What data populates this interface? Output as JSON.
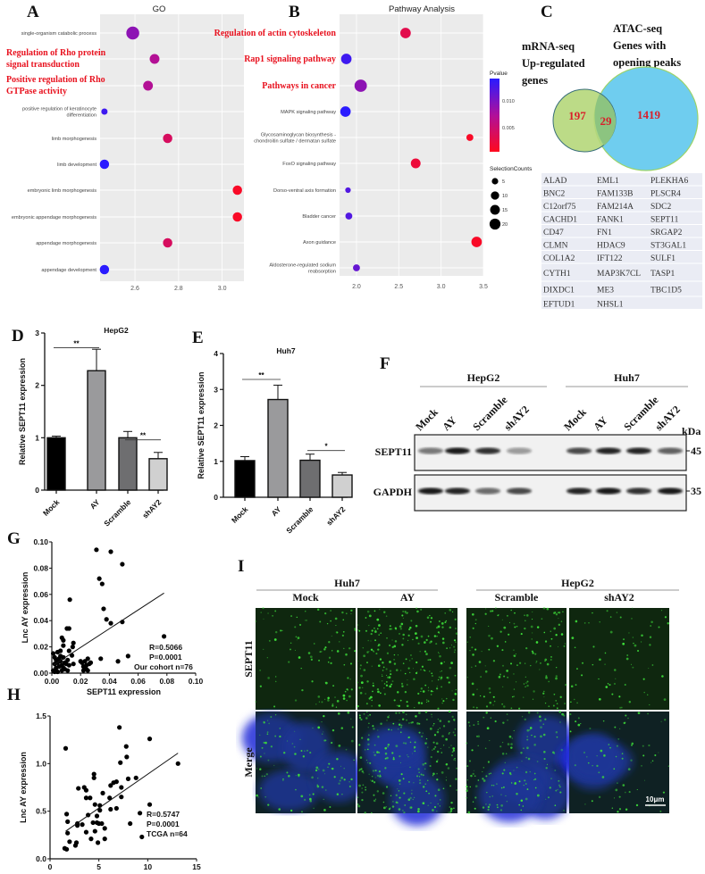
{
  "panels": {
    "A": "A",
    "B": "B",
    "C": "C",
    "D": "D",
    "E": "E",
    "F": "F",
    "G": "G",
    "H": "H",
    "I": "I"
  },
  "chart_data": [
    {
      "id": "go",
      "type": "scatter",
      "title": "GO",
      "xticks": [
        "2.6",
        "2.8",
        "3.0"
      ],
      "xlim": [
        2.44,
        3.1
      ],
      "categories": [
        {
          "label": "single-organism catabolic process",
          "x": 2.59,
          "count": 20,
          "pvalue": 0.009,
          "highlight": false
        },
        {
          "label": "Regulation of Rho protein signal transduction",
          "lines": [
            "Regulation of Rho protein",
            "signal transduction"
          ],
          "x": 2.69,
          "count": 10,
          "pvalue": 0.007,
          "highlight": true
        },
        {
          "label": "Positive regulation of Rho GTPase activity",
          "lines": [
            "Positive regulation of Rho",
            "GTPase activity"
          ],
          "x": 2.66,
          "count": 10,
          "pvalue": 0.007,
          "highlight": true
        },
        {
          "label": "positive regulation of keratinocyte differentiation",
          "lines": [
            "positive regulation of keratinocyte",
            "differentiation"
          ],
          "x": 2.46,
          "count": 3,
          "pvalue": 0.013,
          "highlight": false
        },
        {
          "label": "limb morphogenesis",
          "x": 2.75,
          "count": 9,
          "pvalue": 0.004,
          "highlight": false
        },
        {
          "label": "limb development",
          "x": 2.46,
          "count": 9,
          "pvalue": 0.014,
          "highlight": false
        },
        {
          "label": "embryonic limb morphogenesis",
          "x": 3.07,
          "count": 9,
          "pvalue": 0.001,
          "highlight": false
        },
        {
          "label": "embryonic appendage morphogenesis",
          "x": 3.07,
          "count": 9,
          "pvalue": 0.001,
          "highlight": false
        },
        {
          "label": "appendage morphogenesis",
          "x": 2.75,
          "count": 9,
          "pvalue": 0.004,
          "highlight": false
        },
        {
          "label": "appendage development",
          "x": 2.46,
          "count": 9,
          "pvalue": 0.014,
          "highlight": false
        }
      ]
    },
    {
      "id": "pathway",
      "type": "scatter",
      "title": "Pathway Analysis",
      "xticks": [
        "2.0",
        "2.5",
        "3.0",
        "3.5"
      ],
      "xlim": [
        1.8,
        3.5
      ],
      "categories": [
        {
          "label": "Regulation of actin cytoskeleton",
          "x": 2.58,
          "count": 12,
          "pvalue": 0.003,
          "highlight": true
        },
        {
          "label": "Rap1 signaling pathway",
          "x": 1.88,
          "count": 12,
          "pvalue": 0.013,
          "highlight": true
        },
        {
          "label": "Pathways in cancer",
          "x": 2.05,
          "count": 18,
          "pvalue": 0.009,
          "highlight": true
        },
        {
          "label": "MAPK signaling pathway",
          "x": 1.87,
          "count": 12,
          "pvalue": 0.014,
          "highlight": false
        },
        {
          "label": "Glycosaminoglycan biosynthesis - chondroitin sulfate / dermatan sulfate",
          "lines": [
            "Glycosaminoglycan biosynthesis -",
            "chondroitin sulfate / dermatan sulfate"
          ],
          "x": 3.34,
          "count": 4,
          "pvalue": 0.001,
          "highlight": false
        },
        {
          "label": "FoxO signaling pathway",
          "x": 2.7,
          "count": 10,
          "pvalue": 0.002,
          "highlight": false
        },
        {
          "label": "Dorso-ventral axis formation",
          "x": 1.9,
          "count": 2,
          "pvalue": 0.012,
          "highlight": false
        },
        {
          "label": "Bladder cancer",
          "x": 1.91,
          "count": 4,
          "pvalue": 0.012,
          "highlight": false
        },
        {
          "label": "Axon guidance",
          "x": 3.42,
          "count": 12,
          "pvalue": 0.001,
          "highlight": false
        },
        {
          "label": "Aldosterone-regulated sodium reabsorption",
          "lines": [
            "Aldosterone-regulated sodium",
            "reabsorption"
          ],
          "x": 2.0,
          "count": 4,
          "pvalue": 0.011,
          "highlight": false
        }
      ],
      "legend": {
        "color_title": "Pvalue",
        "color_ticks": [
          "0.010",
          "0.005"
        ],
        "color_range": [
          0.0005,
          0.014
        ],
        "colors": {
          "low": "#ff0a1e",
          "high": "#2a1bff"
        },
        "size_title": "SelectionCounts",
        "size_ticks": [
          5,
          10,
          15,
          20
        ],
        "placement": "right"
      }
    },
    {
      "id": "hepg2-bar",
      "type": "bar",
      "title": "HepG2",
      "ylabel": "Relative SEPT11 expression",
      "ylim": [
        0,
        3
      ],
      "yticks": [
        "0",
        "1",
        "2",
        "3"
      ],
      "categories": [
        "Mock",
        "AY",
        "Scramble",
        "shAY2"
      ],
      "values": [
        1.0,
        2.28,
        1.0,
        0.6
      ],
      "errors": [
        0.03,
        0.41,
        0.12,
        0.12
      ],
      "colors": [
        "#000000",
        "#9a9a9c",
        "#6e6e70",
        "#d0d0d0"
      ],
      "significance": [
        {
          "pair": [
            "Mock",
            "AY"
          ],
          "label": "**",
          "level": 2.72
        },
        {
          "pair": [
            "Scramble",
            "shAY2"
          ],
          "label": "**",
          "level": 0.96
        }
      ]
    },
    {
      "id": "huh7-bar",
      "type": "bar",
      "title": "Huh7",
      "ylabel": "Relative SEPT11 expression",
      "ylim": [
        0,
        4
      ],
      "yticks": [
        "0",
        "1",
        "2",
        "3",
        "4"
      ],
      "categories": [
        "Mock",
        "AY",
        "Scramble",
        "shAY2"
      ],
      "values": [
        1.02,
        2.72,
        1.03,
        0.62
      ],
      "errors": [
        0.11,
        0.4,
        0.17,
        0.07
      ],
      "colors": [
        "#000000",
        "#9a9a9c",
        "#6e6e70",
        "#d0d0d0"
      ],
      "significance": [
        {
          "pair": [
            "Mock",
            "AY"
          ],
          "label": "**",
          "level": 3.28
        },
        {
          "pair": [
            "Scramble",
            "shAY2"
          ],
          "label": "*",
          "level": 1.3
        }
      ]
    },
    {
      "id": "cohort-scatter",
      "type": "scatter",
      "xlabel": "SEPT11 expression",
      "ylabel": "Lnc AY expression",
      "xlim": [
        0,
        0.1
      ],
      "ylim": [
        0,
        0.1
      ],
      "xticks": [
        "0.00",
        "0.02",
        "0.04",
        "0.06",
        "0.08",
        "0.10"
      ],
      "yticks": [
        "0.00",
        "0.02",
        "0.04",
        "0.06",
        "0.08",
        "0.10"
      ],
      "annotation": [
        "R=0.5066",
        "P=0.0001",
        "Our cohort n=76"
      ],
      "fit": [
        [
          0.001,
          0.006
        ],
        [
          0.078,
          0.061
        ]
      ],
      "points": [
        [
          0.031,
          0.094
        ],
        [
          0.041,
          0.0925
        ],
        [
          0.049,
          0.083
        ],
        [
          0.033,
          0.072
        ],
        [
          0.035,
          0.068
        ],
        [
          0.0125,
          0.056
        ],
        [
          0.036,
          0.049
        ],
        [
          0.038,
          0.041
        ],
        [
          0.041,
          0.038
        ],
        [
          0.049,
          0.039
        ],
        [
          0.078,
          0.028
        ],
        [
          0.034,
          0.011
        ],
        [
          0.046,
          0.009
        ],
        [
          0.053,
          0.013
        ],
        [
          0.0105,
          0.034
        ],
        [
          0.012,
          0.034
        ],
        [
          0.007,
          0.027
        ],
        [
          0.008,
          0.025
        ],
        [
          0.015,
          0.023
        ],
        [
          0.0145,
          0.02
        ],
        [
          0.012,
          0.017
        ],
        [
          0.014,
          0.0135
        ],
        [
          0.015,
          0.007
        ],
        [
          0.008,
          0.021
        ],
        [
          0.001,
          0.015
        ],
        [
          0.002,
          0.012
        ],
        [
          0.003,
          0.01
        ],
        [
          0.004,
          0.008
        ],
        [
          0.005,
          0.011
        ],
        [
          0.006,
          0.009
        ],
        [
          0.007,
          0.006
        ],
        [
          0.008,
          0.012
        ],
        [
          0.009,
          0.008
        ],
        [
          0.01,
          0.007
        ],
        [
          0.011,
          0.01
        ],
        [
          0.003,
          0.004
        ],
        [
          0.002,
          0.007
        ],
        [
          0.005,
          0.005
        ],
        [
          0.006,
          0.013
        ],
        [
          0.001,
          0.002
        ],
        [
          0.004,
          0.016
        ],
        [
          0.009,
          0.003
        ],
        [
          0.002,
          0.001
        ],
        [
          0.007,
          0.002
        ],
        [
          0.012,
          0.006
        ],
        [
          0.006,
          0.017
        ],
        [
          0.021,
          0.008
        ],
        [
          0.022,
          0.005
        ],
        [
          0.023,
          0.009
        ],
        [
          0.024,
          0.003
        ],
        [
          0.025,
          0.011
        ],
        [
          0.026,
          0.007
        ],
        [
          0.027,
          0.008
        ],
        [
          0.024,
          0.006
        ],
        [
          0.022,
          0.002
        ],
        [
          0.02,
          0.009
        ],
        [
          0.025,
          0.002
        ],
        [
          0.004,
          0.001
        ],
        [
          0.008,
          0.004
        ],
        [
          0.011,
          0.002
        ]
      ]
    },
    {
      "id": "tcga-scatter",
      "type": "scatter",
      "ylabel": "Lnc AY expression",
      "xlim": [
        0,
        15
      ],
      "ylim": [
        0,
        1.5
      ],
      "xticks": [
        "0",
        "5",
        "10",
        "15"
      ],
      "yticks": [
        "0.0",
        "0.5",
        "1.0",
        "1.5"
      ],
      "annotation": [
        "R=0.5747",
        "P=0.0001",
        "TCGA   n=64"
      ],
      "fit": [
        [
          1.6,
          0.29
        ],
        [
          13.1,
          1.11
        ]
      ],
      "points": [
        [
          1.6,
          1.16
        ],
        [
          7.1,
          1.38
        ],
        [
          10.2,
          1.26
        ],
        [
          13.1,
          1.0
        ],
        [
          7.8,
          1.18
        ],
        [
          7.85,
          1.07
        ],
        [
          7.2,
          1.01
        ],
        [
          4.5,
          0.89
        ],
        [
          4.5,
          0.85
        ],
        [
          2.9,
          0.74
        ],
        [
          3.5,
          0.75
        ],
        [
          3.7,
          0.72
        ],
        [
          3.7,
          0.64
        ],
        [
          4.1,
          0.64
        ],
        [
          6.5,
          0.8
        ],
        [
          6.8,
          0.81
        ],
        [
          8.0,
          0.84
        ],
        [
          8.8,
          0.85
        ],
        [
          6.2,
          0.77
        ],
        [
          7.3,
          0.75
        ],
        [
          5.4,
          0.69
        ],
        [
          6.1,
          0.64
        ],
        [
          7.3,
          0.65
        ],
        [
          4.6,
          0.57
        ],
        [
          5.1,
          0.56
        ],
        [
          6.2,
          0.52
        ],
        [
          6.8,
          0.53
        ],
        [
          10.2,
          0.57
        ],
        [
          9.2,
          0.48
        ],
        [
          8.2,
          0.37
        ],
        [
          9.4,
          0.23
        ],
        [
          1.7,
          0.47
        ],
        [
          1.8,
          0.39
        ],
        [
          1.8,
          0.27
        ],
        [
          2.0,
          0.18
        ],
        [
          1.5,
          0.11
        ],
        [
          1.7,
          0.1
        ],
        [
          2.7,
          0.17
        ],
        [
          2.6,
          0.14
        ],
        [
          2.8,
          0.37
        ],
        [
          2.8,
          0.35
        ],
        [
          3.3,
          0.36
        ],
        [
          3.9,
          0.46
        ],
        [
          3.7,
          0.28
        ],
        [
          4.2,
          0.21
        ],
        [
          4.6,
          0.29
        ],
        [
          4.4,
          0.38
        ],
        [
          4.8,
          0.45
        ],
        [
          5.0,
          0.37
        ],
        [
          4.9,
          0.17
        ],
        [
          5.3,
          0.37
        ],
        [
          5.6,
          0.32
        ],
        [
          5.6,
          0.21
        ],
        [
          5.1,
          0.51
        ],
        [
          4.8,
          0.38
        ]
      ]
    }
  ],
  "venn": {
    "left_title": [
      "mRNA-seq",
      "Up-regulated",
      "genes"
    ],
    "right_title": [
      "ATAC-seq",
      "Genes with",
      "opening peaks"
    ],
    "left_only": "197",
    "overlap": "29",
    "right_only": "1419",
    "colors": {
      "left": "#b5d77a",
      "right": "#6fcdef",
      "overlap": "#8cc480",
      "numbers": "#d91f2a"
    }
  },
  "gene_table": {
    "rows": [
      [
        "ALAD",
        "EML1",
        "PLEKHA6"
      ],
      [
        "BNC2",
        "FAM133B",
        "PLSCR4"
      ],
      [
        "C12orf75",
        "FAM214A",
        "SDC2"
      ],
      [
        "CACHD1",
        "FANK1",
        "SEPT11"
      ],
      [
        "CD47",
        "FN1",
        "SRGAP2"
      ],
      [
        "CLMN",
        "HDAC9",
        "ST3GAL1"
      ],
      [
        "COL1A2",
        "IFT122",
        "SULF1"
      ],
      [
        "CYTH1",
        "MAP3K7CL",
        "TASP1"
      ],
      [
        "DIXDC1",
        "ME3",
        "TBC1D5"
      ],
      [
        "EFTUD1",
        "NHSL1",
        ""
      ]
    ],
    "highlight": "SEPT11",
    "highlight_color": "#e8121f"
  },
  "western": {
    "groups": [
      {
        "name": "HepG2",
        "lanes": [
          "Mock",
          "AY",
          "Scramble",
          "shAY2"
        ]
      },
      {
        "name": "Huh7",
        "lanes": [
          "Mock",
          "AY",
          "Scramble",
          "shAY2"
        ]
      }
    ],
    "rows": [
      {
        "label": "SEPT11",
        "kda": "45"
      },
      {
        "label": "GAPDH",
        "kda": "35"
      }
    ],
    "kda_label": "kDa"
  },
  "immuno": {
    "groups": [
      {
        "name": "Huh7",
        "columns": [
          "Mock",
          "AY"
        ]
      },
      {
        "name": "HepG2",
        "columns": [
          "Scramble",
          "shAY2"
        ]
      }
    ],
    "rows": [
      "SEPT11",
      "Merge"
    ],
    "scale_bar": "10μm",
    "colors": {
      "stain": "#3ee03a",
      "nucleus": "#1d2ad8"
    }
  }
}
